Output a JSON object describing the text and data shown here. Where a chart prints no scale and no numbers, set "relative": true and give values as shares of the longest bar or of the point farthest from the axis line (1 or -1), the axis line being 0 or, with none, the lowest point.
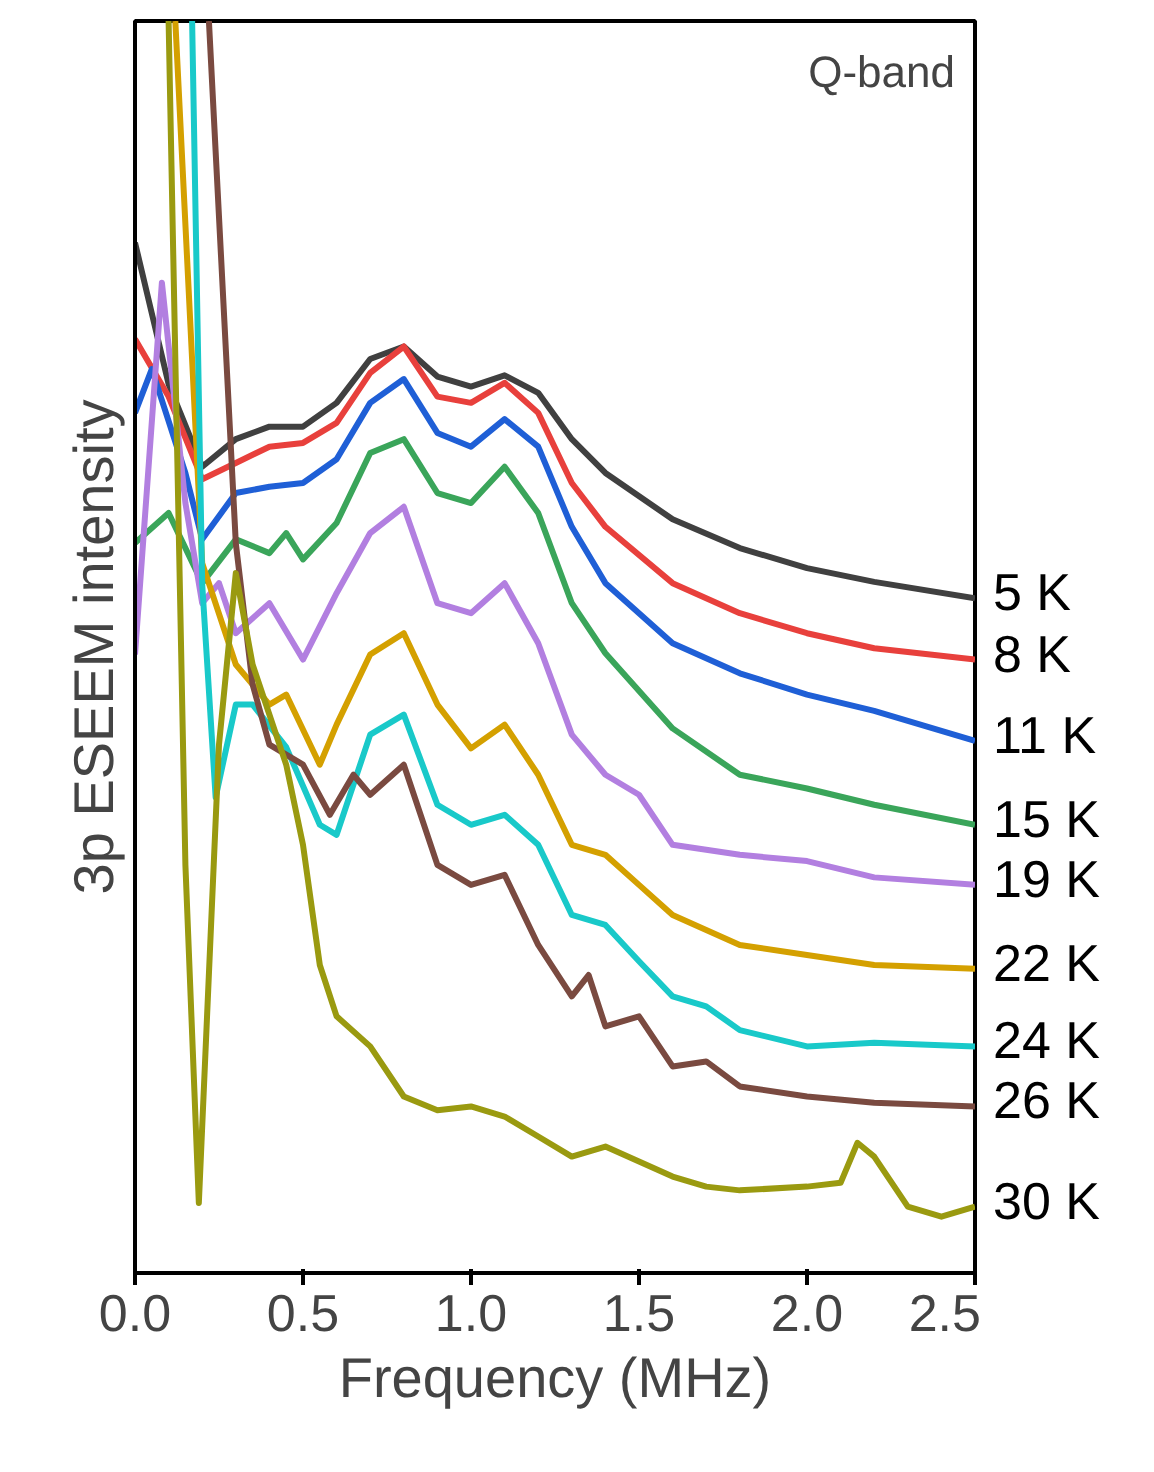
{
  "chart_data": {
    "type": "line",
    "relative": true,
    "xlabel": "Frequency (MHz)",
    "ylabel": "3p ESEEM intensity",
    "annotations": [
      "Q-band"
    ],
    "xlim": [
      0,
      2.5
    ],
    "xticks": [
      {
        "value": 0,
        "label": "0.0"
      },
      {
        "value": 0.5,
        "label": "0.5"
      },
      {
        "value": 1,
        "label": "1.0"
      },
      {
        "value": 1.5,
        "label": "1.5"
      },
      {
        "value": 2,
        "label": "2.0"
      },
      {
        "value": 2.5,
        "label": "2.5"
      }
    ],
    "grid": false,
    "marker": "none",
    "line_style": "solid",
    "series": [
      {
        "name": "5 K",
        "color": "#404040",
        "x": [
          0,
          0.1,
          0.2,
          0.3,
          0.4,
          0.5,
          0.6,
          0.7,
          0.8,
          0.9,
          1.0,
          1.1,
          1.2,
          1.3,
          1.4,
          1.6,
          1.8,
          2.0,
          2.2,
          2.5
        ],
        "values": [
          0.823,
          0.71,
          0.644,
          0.666,
          0.676,
          0.676,
          0.695,
          0.73,
          0.74,
          0.716,
          0.708,
          0.717,
          0.703,
          0.666,
          0.639,
          0.602,
          0.579,
          0.563,
          0.552,
          0.539
        ]
      },
      {
        "name": "8 K",
        "color": "#e8403c",
        "x": [
          0,
          0.1,
          0.2,
          0.3,
          0.4,
          0.5,
          0.6,
          0.7,
          0.8,
          0.9,
          1.0,
          1.1,
          1.2,
          1.3,
          1.4,
          1.6,
          1.8,
          2.0,
          2.2,
          2.5
        ],
        "values": [
          0.746,
          0.7,
          0.634,
          0.647,
          0.66,
          0.663,
          0.679,
          0.719,
          0.74,
          0.7,
          0.695,
          0.711,
          0.687,
          0.631,
          0.596,
          0.551,
          0.527,
          0.511,
          0.499,
          0.49
        ]
      },
      {
        "name": "11 K",
        "color": "#1f5fd6",
        "x": [
          0,
          0.05,
          0.15,
          0.2,
          0.3,
          0.4,
          0.5,
          0.6,
          0.7,
          0.8,
          0.9,
          1.0,
          1.1,
          1.2,
          1.3,
          1.4,
          1.6,
          1.8,
          2.0,
          2.2,
          2.5
        ],
        "values": [
          0.687,
          0.722,
          0.639,
          0.586,
          0.623,
          0.628,
          0.631,
          0.65,
          0.695,
          0.714,
          0.671,
          0.66,
          0.682,
          0.66,
          0.596,
          0.551,
          0.503,
          0.479,
          0.462,
          0.449,
          0.425
        ]
      },
      {
        "name": "15 K",
        "color": "#3aa55a",
        "x": [
          0,
          0.1,
          0.2,
          0.3,
          0.4,
          0.45,
          0.5,
          0.6,
          0.7,
          0.8,
          0.9,
          1.0,
          1.1,
          1.2,
          1.3,
          1.4,
          1.6,
          1.8,
          2.0,
          2.2,
          2.5
        ],
        "values": [
          0.583,
          0.607,
          0.551,
          0.586,
          0.575,
          0.591,
          0.57,
          0.599,
          0.655,
          0.666,
          0.623,
          0.615,
          0.644,
          0.607,
          0.535,
          0.495,
          0.435,
          0.398,
          0.387,
          0.374,
          0.358
        ]
      },
      {
        "name": "19 K",
        "color": "#b27fe0",
        "x": [
          0,
          0.08,
          0.15,
          0.2,
          0.25,
          0.3,
          0.4,
          0.5,
          0.6,
          0.7,
          0.8,
          0.9,
          1.0,
          1.1,
          1.2,
          1.3,
          1.4,
          1.5,
          1.6,
          1.8,
          2.0,
          2.2,
          2.5
        ],
        "values": [
          0.494,
          0.791,
          0.615,
          0.535,
          0.551,
          0.511,
          0.535,
          0.49,
          0.543,
          0.591,
          0.612,
          0.535,
          0.527,
          0.551,
          0.503,
          0.43,
          0.398,
          0.382,
          0.342,
          0.334,
          0.329,
          0.316,
          0.31
        ]
      },
      {
        "name": "22 K",
        "color": "#d4a000",
        "x": [
          0.12,
          0.2,
          0.3,
          0.4,
          0.45,
          0.55,
          0.6,
          0.7,
          0.8,
          0.9,
          1.0,
          1.1,
          1.2,
          1.3,
          1.4,
          1.5,
          1.6,
          1.8,
          2.0,
          2.2,
          2.5
        ],
        "values": [
          1.0,
          0.567,
          0.486,
          0.454,
          0.462,
          0.406,
          0.438,
          0.494,
          0.511,
          0.454,
          0.419,
          0.438,
          0.398,
          0.342,
          0.334,
          0.31,
          0.286,
          0.262,
          0.254,
          0.246,
          0.243
        ]
      },
      {
        "name": "24 K",
        "color": "#19c9c9",
        "x": [
          0.17,
          0.2,
          0.24,
          0.3,
          0.35,
          0.45,
          0.55,
          0.6,
          0.7,
          0.8,
          0.9,
          1.0,
          1.1,
          1.2,
          1.3,
          1.4,
          1.5,
          1.6,
          1.7,
          1.8,
          2.0,
          2.2,
          2.5
        ],
        "values": [
          1.0,
          0.55,
          0.38,
          0.454,
          0.454,
          0.42,
          0.358,
          0.35,
          0.43,
          0.446,
          0.374,
          0.358,
          0.366,
          0.342,
          0.286,
          0.278,
          0.249,
          0.221,
          0.213,
          0.194,
          0.181,
          0.184,
          0.181
        ]
      },
      {
        "name": "26 K",
        "color": "#7a4a40",
        "x": [
          0.22,
          0.3,
          0.35,
          0.4,
          0.5,
          0.58,
          0.65,
          0.7,
          0.8,
          0.9,
          1.0,
          1.1,
          1.2,
          1.3,
          1.35,
          1.4,
          1.5,
          1.6,
          1.7,
          1.8,
          2.0,
          2.2,
          2.5
        ],
        "values": [
          1.0,
          0.583,
          0.47,
          0.422,
          0.406,
          0.366,
          0.398,
          0.382,
          0.406,
          0.326,
          0.31,
          0.318,
          0.262,
          0.221,
          0.238,
          0.197,
          0.205,
          0.165,
          0.169,
          0.149,
          0.141,
          0.136,
          0.133
        ]
      },
      {
        "name": "30 K",
        "color": "#9a9a10",
        "x": [
          0.1,
          0.15,
          0.19,
          0.25,
          0.3,
          0.35,
          0.45,
          0.5,
          0.55,
          0.6,
          0.7,
          0.8,
          0.9,
          1.0,
          1.1,
          1.2,
          1.3,
          1.4,
          1.6,
          1.7,
          1.8,
          2.0,
          2.1,
          2.15,
          2.2,
          2.3,
          2.4,
          2.5
        ],
        "values": [
          1.0,
          0.326,
          0.056,
          0.422,
          0.559,
          0.486,
          0.406,
          0.342,
          0.246,
          0.205,
          0.181,
          0.141,
          0.13,
          0.133,
          0.125,
          0.109,
          0.093,
          0.101,
          0.077,
          0.069,
          0.066,
          0.069,
          0.072,
          0.104,
          0.093,
          0.053,
          0.045,
          0.053
        ]
      }
    ]
  }
}
